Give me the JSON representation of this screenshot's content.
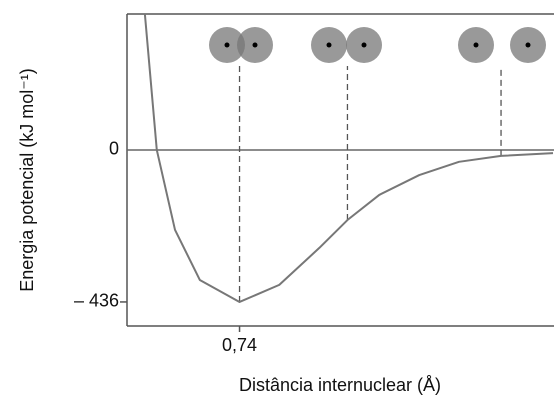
{
  "chart_data": {
    "type": "line",
    "y_label": "Energia potencial (kJ mol⁻¹)",
    "x_label": "Distância internuclear (Å)",
    "x": [
      0.454,
      0.49,
      0.545,
      0.62,
      0.74,
      0.86,
      0.981,
      1.066,
      1.162,
      1.283,
      1.403,
      1.53,
      1.687
    ],
    "values": [
      390,
      0,
      -229,
      -373,
      -436,
      -387,
      -281,
      -201,
      -129,
      -72,
      -34,
      -17,
      -9
    ],
    "color": "#777777",
    "markers": {
      "x": [
        0.74,
        1.066,
        1.53
      ],
      "y": [
        -436,
        -201,
        -17
      ]
    },
    "xlim": [
      0.4,
      1.69
    ],
    "ylim": [
      -505,
      390
    ],
    "xticks": [
      {
        "value": 0.74,
        "label": "0,74"
      }
    ],
    "yticks": [
      0,
      {
        "value": -436,
        "label": "– 436"
      }
    ]
  }
}
